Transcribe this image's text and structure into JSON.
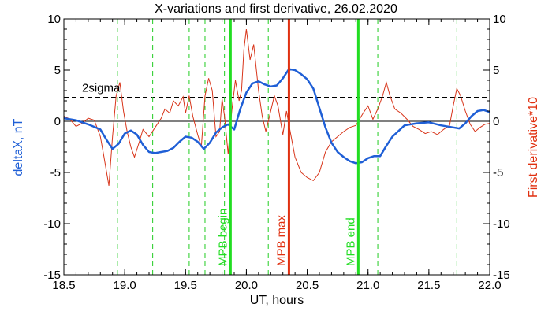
{
  "chart_data": {
    "type": "line",
    "title": "X-variations and first derivative, 26.02.2020",
    "xlabel": "UT, hours",
    "ylabel_left": "deltaX, nT",
    "ylabel_right": "First derivative*10",
    "xlim": [
      18.5,
      22.0
    ],
    "ylim": [
      -15,
      10
    ],
    "x_ticks": [
      "18.5",
      "19.0",
      "19.5",
      "20.0",
      "20.5",
      "21.0",
      "21.5",
      "22.0"
    ],
    "x_tick_values": [
      18.5,
      19.0,
      19.5,
      20.0,
      20.5,
      21.0,
      21.5,
      22.0
    ],
    "y_ticks": [
      "10",
      "5",
      "0",
      "-5",
      "-10",
      "-15"
    ],
    "y_tick_values": [
      10,
      5,
      0,
      -5,
      -10,
      -15
    ],
    "sigma_label": "2sigma",
    "sigma_level": 2.35,
    "zero_level": 0,
    "colors": {
      "deltaX": "#1f5fd6",
      "derivative": "#d8351a",
      "begin_end": "#22dd22",
      "max": "#e03010",
      "dashed_green": "#22cc22",
      "right_label": "#e03010",
      "left_label": "#1f5fd6"
    },
    "vertical_dashed": [
      18.94,
      19.23,
      19.53,
      19.66,
      19.82,
      20.18,
      21.08,
      21.73
    ],
    "events": [
      {
        "label": "MPB begin",
        "x": 19.87,
        "color": "#22dd22"
      },
      {
        "label": "MPB max",
        "x": 20.35,
        "color": "#e03010"
      },
      {
        "label": "MPB end",
        "x": 20.92,
        "color": "#22dd22"
      }
    ],
    "series": [
      {
        "name": "deltaX, nT",
        "x": [
          18.5,
          18.6,
          18.7,
          18.8,
          18.85,
          18.9,
          18.95,
          19.0,
          19.05,
          19.1,
          19.15,
          19.2,
          19.25,
          19.3,
          19.35,
          19.4,
          19.45,
          19.5,
          19.55,
          19.6,
          19.65,
          19.7,
          19.75,
          19.8,
          19.85,
          19.9,
          19.95,
          20.0,
          20.05,
          20.1,
          20.15,
          20.2,
          20.25,
          20.3,
          20.35,
          20.4,
          20.45,
          20.5,
          20.55,
          20.6,
          20.65,
          20.7,
          20.75,
          20.8,
          20.85,
          20.9,
          20.95,
          21.0,
          21.05,
          21.1,
          21.15,
          21.2,
          21.3,
          21.4,
          21.5,
          21.6,
          21.7,
          21.75,
          21.8,
          21.85,
          21.9,
          21.95,
          22.0
        ],
        "y": [
          0.3,
          0.1,
          -0.3,
          -0.8,
          -1.8,
          -2.7,
          -2.2,
          -1.2,
          -0.9,
          -1.3,
          -2.3,
          -3.0,
          -3.1,
          -3.0,
          -2.9,
          -2.6,
          -2.0,
          -1.5,
          -1.6,
          -2.0,
          -2.7,
          -2.1,
          -1.1,
          -0.6,
          -0.3,
          -0.8,
          1.2,
          2.8,
          3.7,
          3.9,
          3.6,
          3.4,
          3.5,
          4.2,
          5.1,
          5.0,
          4.6,
          4.1,
          3.2,
          1.3,
          -0.6,
          -2.1,
          -3.0,
          -3.5,
          -3.9,
          -4.1,
          -4.0,
          -3.6,
          -3.4,
          -3.4,
          -2.4,
          -1.5,
          -0.4,
          -0.2,
          -0.1,
          -0.4,
          -0.6,
          -0.7,
          -0.2,
          0.5,
          1.0,
          1.1,
          0.9
        ]
      },
      {
        "name": "First derivative*10",
        "x": [
          18.5,
          18.55,
          18.6,
          18.65,
          18.7,
          18.75,
          18.8,
          18.83,
          18.87,
          18.9,
          18.93,
          18.96,
          18.99,
          19.02,
          19.05,
          19.08,
          19.12,
          19.15,
          19.2,
          19.25,
          19.3,
          19.33,
          19.37,
          19.4,
          19.44,
          19.48,
          19.5,
          19.53,
          19.56,
          19.6,
          19.63,
          19.66,
          19.69,
          19.72,
          19.75,
          19.78,
          19.8,
          19.82,
          19.85,
          19.88,
          19.91,
          19.94,
          19.96,
          19.98,
          20.0,
          20.03,
          20.06,
          20.1,
          20.13,
          20.16,
          20.2,
          20.23,
          20.26,
          20.3,
          20.33,
          20.36,
          20.4,
          20.45,
          20.5,
          20.55,
          20.6,
          20.65,
          20.7,
          20.75,
          20.8,
          20.85,
          20.9,
          20.93,
          20.96,
          21.0,
          21.04,
          21.08,
          21.12,
          21.15,
          21.18,
          21.22,
          21.27,
          21.32,
          21.37,
          21.42,
          21.47,
          21.52,
          21.57,
          21.62,
          21.67,
          21.7,
          21.73,
          21.76,
          21.8,
          21.84,
          21.88,
          21.92,
          21.96,
          22.0
        ],
        "y": [
          0.5,
          0.2,
          -0.5,
          -0.2,
          0.3,
          0.1,
          -1.5,
          -3.5,
          -6.3,
          -1.5,
          2.5,
          3.8,
          1.0,
          -1.0,
          -2.5,
          -3.5,
          -2.0,
          -0.8,
          -1.5,
          -0.6,
          0.3,
          1.2,
          0.8,
          2.0,
          1.5,
          2.4,
          0.8,
          2.5,
          0.5,
          -1.3,
          -2.5,
          2.5,
          4.2,
          3.0,
          -1.5,
          -1.0,
          2.2,
          0.5,
          -3.2,
          1.0,
          4.0,
          2.0,
          3.0,
          7.0,
          9.0,
          6.0,
          7.5,
          3.0,
          0.5,
          -1.0,
          1.0,
          2.5,
          1.5,
          -1.3,
          1.0,
          -1.0,
          -3.5,
          -5.0,
          -5.5,
          -5.8,
          -5.0,
          -3.0,
          -2.0,
          -1.5,
          -1.0,
          -0.6,
          -0.4,
          0.2,
          0.8,
          1.5,
          0.2,
          1.2,
          2.5,
          3.8,
          2.5,
          1.2,
          0.8,
          0.2,
          -0.5,
          -0.8,
          -1.2,
          -1.0,
          -1.3,
          -0.8,
          -0.4,
          1.5,
          3.2,
          2.5,
          1.0,
          -0.3,
          -1.0,
          -0.6,
          -0.3,
          -0.2
        ]
      }
    ]
  }
}
